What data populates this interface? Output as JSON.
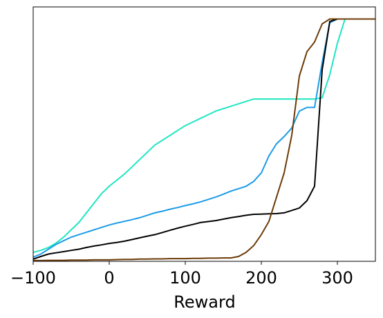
{
  "chart_data": {
    "type": "line",
    "xlabel": "Reward",
    "x": [
      -100,
      -90,
      -80,
      -70,
      -60,
      -50,
      -40,
      -30,
      -20,
      -10,
      0,
      10,
      20,
      30,
      40,
      50,
      60,
      70,
      80,
      90,
      100,
      110,
      120,
      130,
      140,
      150,
      160,
      170,
      180,
      190,
      200,
      210,
      220,
      230,
      240,
      250,
      260,
      270,
      280,
      290,
      300,
      310,
      320,
      330,
      340,
      350
    ],
    "series": [
      {
        "color": "#1de6c2",
        "values": [
          0.037,
          0.045,
          0.057,
          0.075,
          0.1,
          0.13,
          0.16,
          0.2,
          0.24,
          0.28,
          0.31,
          0.335,
          0.36,
          0.39,
          0.42,
          0.45,
          0.48,
          0.5,
          0.52,
          0.54,
          0.56,
          0.575,
          0.59,
          0.605,
          0.62,
          0.63,
          0.64,
          0.65,
          0.66,
          0.67,
          0.67,
          0.67,
          0.67,
          0.67,
          0.67,
          0.67,
          0.67,
          0.67,
          0.675,
          0.77,
          0.9,
          1,
          1,
          1,
          1,
          1
        ]
      },
      {
        "color": "#1a9be8",
        "values": [
          0.017,
          0.03,
          0.05,
          0.07,
          0.085,
          0.1,
          0.11,
          0.12,
          0.13,
          0.14,
          0.15,
          0.158,
          0.165,
          0.172,
          0.18,
          0.19,
          0.2,
          0.207,
          0.215,
          0.222,
          0.23,
          0.237,
          0.245,
          0.255,
          0.265,
          0.277,
          0.29,
          0.3,
          0.31,
          0.33,
          0.365,
          0.435,
          0.485,
          0.515,
          0.55,
          0.62,
          0.635,
          0.635,
          0.82,
          0.985,
          1,
          1,
          1,
          1,
          1,
          1
        ]
      },
      {
        "color": "#000000",
        "values": [
          0.009,
          0.02,
          0.03,
          0.035,
          0.04,
          0.045,
          0.05,
          0.057,
          0.063,
          0.068,
          0.074,
          0.078,
          0.083,
          0.09,
          0.097,
          0.104,
          0.11,
          0.119,
          0.128,
          0.137,
          0.145,
          0.152,
          0.16,
          0.164,
          0.168,
          0.174,
          0.18,
          0.185,
          0.19,
          0.194,
          0.195,
          0.196,
          0.197,
          0.2,
          0.21,
          0.22,
          0.25,
          0.31,
          0.79,
          0.99,
          1,
          1,
          1,
          1,
          1,
          1
        ]
      },
      {
        "color": "#6b3a06",
        "values": [
          0.003,
          0.003,
          0.004,
          0.004,
          0.004,
          0.005,
          0.005,
          0.005,
          0.006,
          0.006,
          0.006,
          0.007,
          0.008,
          0.008,
          0.009,
          0.009,
          0.01,
          0.01,
          0.011,
          0.011,
          0.011,
          0.012,
          0.012,
          0.013,
          0.013,
          0.014,
          0.014,
          0.02,
          0.037,
          0.065,
          0.11,
          0.165,
          0.265,
          0.365,
          0.52,
          0.765,
          0.865,
          0.905,
          0.98,
          1,
          1,
          1,
          1,
          1,
          1,
          1
        ]
      }
    ],
    "xlim": [
      -100,
      350
    ],
    "xticks": [
      {
        "value": -100,
        "label": "−100"
      },
      0,
      100,
      200,
      300
    ],
    "ylim": [
      0,
      1.05
    ]
  }
}
